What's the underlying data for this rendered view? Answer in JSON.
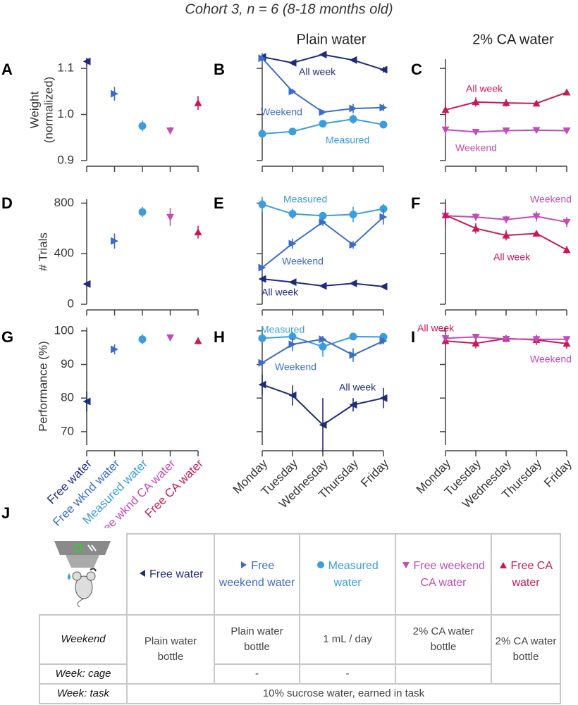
{
  "title": "Cohort 3, n = 6 (8-18 months old)",
  "column_titles": [
    "Plain water",
    "2% CA water"
  ],
  "chart_data": [
    {
      "type": "scatter",
      "panel": "A",
      "ylabel": [
        "Weight",
        "(normalized)"
      ],
      "ylim": [
        0.9,
        1.12
      ],
      "yticks": [
        0.9,
        {
          "value": 1,
          "label": "1.0"
        },
        1.1
      ],
      "values": [
        1.115,
        1.045,
        0.975,
        0.965,
        1.025
      ],
      "errors": [
        0.008,
        0.015,
        0.012,
        0.008,
        0.015
      ],
      "colors": [
        "#1f2d78",
        "#3d6cc6",
        "#3b9ddc",
        "#c04cb4",
        "#c8185a"
      ],
      "markers": [
        "tri-left",
        "tri-right",
        "circle",
        "tri-down",
        "tri-up"
      ]
    },
    {
      "type": "line",
      "panel": "B",
      "ylim": [
        0.9,
        1.12
      ],
      "yticks": [
        0.9,
        1,
        1.1
      ],
      "series": [
        {
          "name": "All week",
          "color": "#1f2d78",
          "marker": "tri-left",
          "values": [
            1.125,
            1.112,
            1.13,
            1.118,
            1.097
          ],
          "errors": [
            0.008,
            0.005,
            0.004,
            0.004,
            0.006
          ]
        },
        {
          "name": "Weekend",
          "color": "#3d6cc6",
          "marker": "tri-right",
          "values": [
            1.122,
            1.05,
            1.005,
            1.013,
            1.015
          ],
          "errors": [
            0.01,
            0.006,
            0.005,
            0.01,
            0.008
          ]
        },
        {
          "name": "Measured",
          "color": "#3b9ddc",
          "marker": "circle",
          "values": [
            0.958,
            0.963,
            0.98,
            0.99,
            0.978
          ],
          "errors": [
            0.005,
            0.004,
            0.008,
            0.01,
            0.005
          ]
        }
      ]
    },
    {
      "type": "line",
      "panel": "C",
      "ylim": [
        0.9,
        1.12
      ],
      "yticks": [
        0.9,
        1,
        1.1
      ],
      "series": [
        {
          "name": "All week",
          "color": "#c8185a",
          "marker": "tri-up",
          "values": [
            1.01,
            1.027,
            1.025,
            1.024,
            1.048
          ],
          "errors": [
            0.015,
            0.01,
            0.008,
            0.006,
            0.005
          ]
        },
        {
          "name": "Weekend",
          "color": "#c04cb4",
          "marker": "tri-down",
          "values": [
            0.967,
            0.962,
            0.965,
            0.966,
            0.965
          ],
          "errors": [
            0.015,
            0.005,
            0.004,
            0.004,
            0.004
          ]
        }
      ]
    },
    {
      "type": "scatter",
      "panel": "D",
      "ylabel": "# Trials",
      "ylim": [
        0,
        830
      ],
      "yticks": [
        0,
        400,
        800
      ],
      "values": [
        160,
        500,
        730,
        690,
        570
      ],
      "errors": [
        20,
        60,
        40,
        70,
        50
      ],
      "colors": [
        "#1f2d78",
        "#3d6cc6",
        "#3b9ddc",
        "#c04cb4",
        "#c8185a"
      ],
      "markers": [
        "tri-left",
        "tri-right",
        "circle",
        "tri-down",
        "tri-up"
      ]
    },
    {
      "type": "line",
      "panel": "E",
      "ylim": [
        0,
        830
      ],
      "yticks": [
        0,
        400,
        800
      ],
      "series": [
        {
          "name": "Measured",
          "color": "#3b9ddc",
          "marker": "circle",
          "values": [
            790,
            715,
            700,
            710,
            755
          ],
          "errors": [
            60,
            40,
            30,
            60,
            40
          ]
        },
        {
          "name": "Weekend",
          "color": "#3d6cc6",
          "marker": "tri-right",
          "values": [
            290,
            480,
            650,
            470,
            690
          ],
          "errors": [
            25,
            40,
            30,
            30,
            60
          ]
        },
        {
          "name": "All week",
          "color": "#1f2d78",
          "marker": "tri-left",
          "values": [
            200,
            175,
            145,
            165,
            140
          ],
          "errors": [
            20,
            15,
            15,
            15,
            10
          ]
        }
      ]
    },
    {
      "type": "line",
      "panel": "F",
      "ylim": [
        0,
        830
      ],
      "yticks": [
        0,
        400,
        800
      ],
      "series": [
        {
          "name": "Weekend",
          "color": "#c04cb4",
          "marker": "tri-down",
          "values": [
            700,
            690,
            670,
            695,
            650
          ],
          "errors": [
            40,
            30,
            30,
            40,
            40
          ]
        },
        {
          "name": "All week",
          "color": "#c8185a",
          "marker": "tri-up",
          "values": [
            705,
            600,
            545,
            560,
            430
          ],
          "errors": [
            80,
            40,
            40,
            20,
            30
          ]
        }
      ]
    },
    {
      "type": "scatter",
      "panel": "G",
      "ylabel": "Performance (%)",
      "ylim": [
        66,
        101
      ],
      "yticks": [
        70,
        80,
        90,
        100
      ],
      "categories": [
        "Free water",
        "Free wknd water",
        "Measured water",
        "Free wknd CA water",
        "Free CA water"
      ],
      "values": [
        79,
        94.5,
        97.5,
        98,
        97
      ],
      "errors": [
        3,
        1.5,
        1.5,
        1,
        1
      ],
      "colors": [
        "#1f2d78",
        "#3d6cc6",
        "#3b9ddc",
        "#c04cb4",
        "#c8185a"
      ],
      "markers": [
        "tri-left",
        "tri-right",
        "circle",
        "tri-down",
        "tri-up"
      ]
    },
    {
      "type": "line",
      "panel": "H",
      "ylim": [
        66,
        101
      ],
      "yticks": [
        70,
        80,
        90,
        100
      ],
      "categories": [
        "Monday",
        "Tuesday",
        "Wednesday",
        "Thursday",
        "Friday"
      ],
      "series": [
        {
          "name": "Measured",
          "color": "#3b9ddc",
          "marker": "circle",
          "values": [
            97.8,
            98.3,
            95.3,
            98.3,
            98.2
          ],
          "errors": [
            1,
            1.5,
            3,
            1,
            1
          ]
        },
        {
          "name": "Weekend",
          "color": "#3d6cc6",
          "marker": "tri-right",
          "values": [
            90.5,
            96,
            97.5,
            92.8,
            97
          ],
          "errors": [
            1,
            2,
            1,
            2,
            1
          ]
        },
        {
          "name": "All week",
          "color": "#1f2d78",
          "marker": "tri-left",
          "values": [
            84,
            80.8,
            72,
            78,
            80
          ],
          "errors": [
            3,
            3,
            8,
            2,
            3
          ]
        }
      ]
    },
    {
      "type": "line",
      "panel": "I",
      "ylim": [
        66,
        101
      ],
      "yticks": [
        70,
        80,
        90,
        100
      ],
      "categories": [
        "Monday",
        "Tuesday",
        "Wednesday",
        "Thursday",
        "Friday"
      ],
      "series": [
        {
          "name": "All week",
          "color": "#c8185a",
          "marker": "tri-up",
          "values": [
            97,
            96.3,
            97.7,
            97.3,
            96.2
          ],
          "errors": [
            1,
            1.5,
            1,
            1.5,
            1.5
          ]
        },
        {
          "name": "Weekend",
          "color": "#c04cb4",
          "marker": "tri-down",
          "values": [
            97.8,
            98.2,
            97.6,
            97.5,
            97.5
          ],
          "errors": [
            1,
            0.5,
            1,
            1,
            0.5
          ]
        }
      ]
    }
  ],
  "table": {
    "panel": "J",
    "header": [
      "Free water",
      "Free weekend water",
      "Measured water",
      "Free weekend CA water",
      "Free CA water"
    ],
    "rows": [
      {
        "label": "Weekend",
        "cells": [
          "Plain water bottle",
          "Plain water bottle",
          "1 mL / day",
          "2% CA water bottle",
          "2% CA water bottle"
        ]
      },
      {
        "label": "Week: cage",
        "cells": [
          "-",
          "-"
        ]
      },
      {
        "label": "Week: task",
        "cells": [
          "10% sucrose water, earned in task"
        ]
      }
    ]
  }
}
